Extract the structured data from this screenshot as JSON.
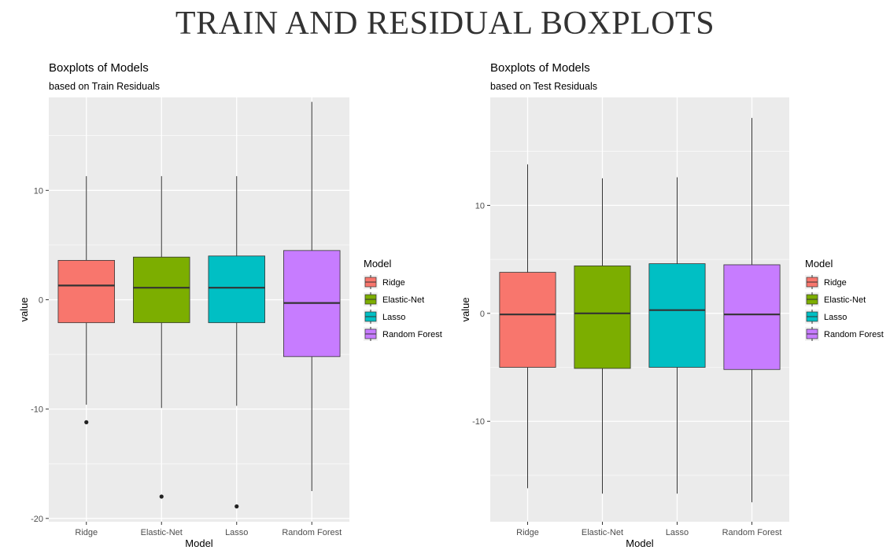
{
  "page": {
    "title": "TRAIN AND RESIDUAL BOXPLOTS"
  },
  "chart_data": [
    {
      "type": "boxplot",
      "title": "Boxplots of Models",
      "subtitle": "based on Train Residuals",
      "xlabel": "Model",
      "ylabel": "value",
      "ylim": [
        -20.3,
        18.5
      ],
      "yticks": [
        -20,
        -10,
        0,
        10
      ],
      "ytick_labels": [
        "-20",
        "-10",
        "0",
        "10"
      ],
      "grid": true,
      "legend": {
        "title": "Model",
        "position": "right"
      },
      "categories": [
        "Ridge",
        "Elastic-Net",
        "Lasso",
        "Random Forest"
      ],
      "colors": [
        "#F8766D",
        "#7CAE00",
        "#00BFC4",
        "#C77CFF"
      ],
      "boxes": [
        {
          "whisker_low": -9.6,
          "q1": -2.1,
          "median": 1.3,
          "q3": 3.6,
          "whisker_high": 11.3,
          "outliers": [
            -11.2
          ]
        },
        {
          "whisker_low": -9.9,
          "q1": -2.1,
          "median": 1.1,
          "q3": 3.9,
          "whisker_high": 11.3,
          "outliers": [
            -18.0
          ]
        },
        {
          "whisker_low": -9.7,
          "q1": -2.1,
          "median": 1.1,
          "q3": 4.0,
          "whisker_high": 11.3,
          "outliers": [
            -18.9
          ]
        },
        {
          "whisker_low": -17.5,
          "q1": -5.2,
          "median": -0.3,
          "q3": 4.5,
          "whisker_high": 18.1,
          "outliers": []
        }
      ]
    },
    {
      "type": "boxplot",
      "title": "Boxplots of Models",
      "subtitle": "based on Test Residuals",
      "xlabel": "Model",
      "ylabel": "value",
      "ylim": [
        -19.3,
        20.0
      ],
      "yticks": [
        -10,
        0,
        10
      ],
      "ytick_labels": [
        "-10",
        "0",
        "10"
      ],
      "grid": true,
      "legend": {
        "title": "Model",
        "position": "right"
      },
      "categories": [
        "Ridge",
        "Elastic-Net",
        "Lasso",
        "Random Forest"
      ],
      "colors": [
        "#F8766D",
        "#7CAE00",
        "#00BFC4",
        "#C77CFF"
      ],
      "boxes": [
        {
          "whisker_low": -16.2,
          "q1": -5.0,
          "median": -0.1,
          "q3": 3.8,
          "whisker_high": 13.8,
          "outliers": []
        },
        {
          "whisker_low": -16.7,
          "q1": -5.1,
          "median": 0.0,
          "q3": 4.4,
          "whisker_high": 12.5,
          "outliers": []
        },
        {
          "whisker_low": -16.7,
          "q1": -5.0,
          "median": 0.3,
          "q3": 4.6,
          "whisker_high": 12.6,
          "outliers": []
        },
        {
          "whisker_low": -17.5,
          "q1": -5.2,
          "median": -0.1,
          "q3": 4.5,
          "whisker_high": 18.1,
          "outliers": []
        }
      ]
    }
  ]
}
